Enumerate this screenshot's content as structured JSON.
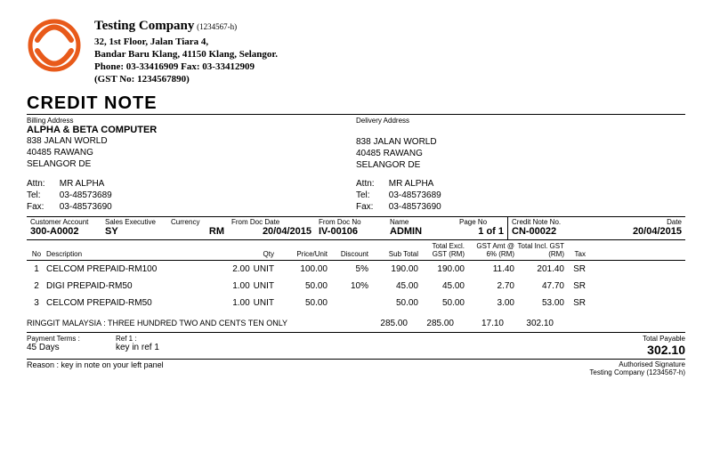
{
  "company": {
    "name": "Testing Company",
    "reg": "(1234567-h)",
    "addr1": "32, 1st Floor, Jalan Tiara 4,",
    "addr2": "Bandar Baru Klang, 41150 Klang, Selangor.",
    "phone_fax": "Phone: 03-33416909   Fax: 03-33412909",
    "gst": "(GST No: 1234567890)"
  },
  "doc_title": "CREDIT NOTE",
  "billing": {
    "label": "Billing Address",
    "name": "ALPHA & BETA COMPUTER",
    "l1": "838 JALAN WORLD",
    "l2": "40485 RAWANG",
    "l3": "SELANGOR DE",
    "attn_lbl": "Attn:",
    "attn": "MR ALPHA",
    "tel_lbl": "Tel:",
    "tel": "03-48573689",
    "fax_lbl": "Fax:",
    "fax": "03-48573690"
  },
  "delivery": {
    "label": "Delivery Address",
    "l1": "838 JALAN WORLD",
    "l2": "40485 RAWANG",
    "l3": "SELANGOR DE",
    "attn_lbl": "Attn:",
    "attn": "MR ALPHA",
    "tel_lbl": "Tel:",
    "tel": "03-48573689",
    "fax_lbl": "Fax:",
    "fax": "03-48573690"
  },
  "meta": {
    "cust_lbl": "Customer Account",
    "cust": "300-A0002",
    "se_lbl": "Sales Executive",
    "se": "SY",
    "cur_lbl": "Currency",
    "cur": "RM",
    "fdd_lbl": "From Doc Date",
    "fdd": "20/04/2015",
    "fdn_lbl": "From Doc No",
    "fdn": "IV-00106",
    "name_lbl": "Name",
    "name": "ADMIN",
    "page_lbl": "Page No",
    "page": "1 of 1",
    "cnn_lbl": "Credit Note No.",
    "cnn": "CN-00022",
    "date_lbl": "Date",
    "date": "20/04/2015"
  },
  "cols": {
    "no": "No",
    "desc": "Description",
    "qty": "Qty",
    "pu": "Price/Unit",
    "disc": "Discount",
    "sub": "Sub Total",
    "texcl": "Total Excl. GST (RM)",
    "gstamt": "GST Amt @ 6% (RM)",
    "tincl": "Total Incl. GST (RM)",
    "tax": "Tax"
  },
  "lines": [
    {
      "no": "1",
      "desc": "CELCOM PREPAID-RM100",
      "qty": "2.00",
      "unit": "UNIT",
      "pu": "100.00",
      "disc": "5%",
      "sub": "190.00",
      "texcl": "190.00",
      "gstamt": "11.40",
      "tincl": "201.40",
      "tax": "SR"
    },
    {
      "no": "2",
      "desc": "DIGI PREPAID-RM50",
      "qty": "1.00",
      "unit": "UNIT",
      "pu": "50.00",
      "disc": "10%",
      "sub": "45.00",
      "texcl": "45.00",
      "gstamt": "2.70",
      "tincl": "47.70",
      "tax": "SR"
    },
    {
      "no": "3",
      "desc": "CELCOM PREPAID-RM50",
      "qty": "1.00",
      "unit": "UNIT",
      "pu": "50.00",
      "disc": "",
      "sub": "50.00",
      "texcl": "50.00",
      "gstamt": "3.00",
      "tincl": "53.00",
      "tax": "SR"
    }
  ],
  "totals": {
    "words": "RINGGIT MALAYSIA : THREE HUNDRED TWO AND CENTS TEN ONLY",
    "sub": "285.00",
    "texcl": "285.00",
    "gstamt": "17.10",
    "tincl": "302.10"
  },
  "footer": {
    "pt_lbl": "Payment Terms :",
    "pt": "45 Days",
    "ref_lbl": "Ref 1 :",
    "ref": "key in ref 1",
    "tp_lbl": "Total Payable",
    "tp": "302.10",
    "reason_lbl": "Reason :",
    "reason": "key in note on your left panel",
    "sig_lbl": "Authorised Signature",
    "sig_name": "Testing Company (1234567-h)"
  }
}
